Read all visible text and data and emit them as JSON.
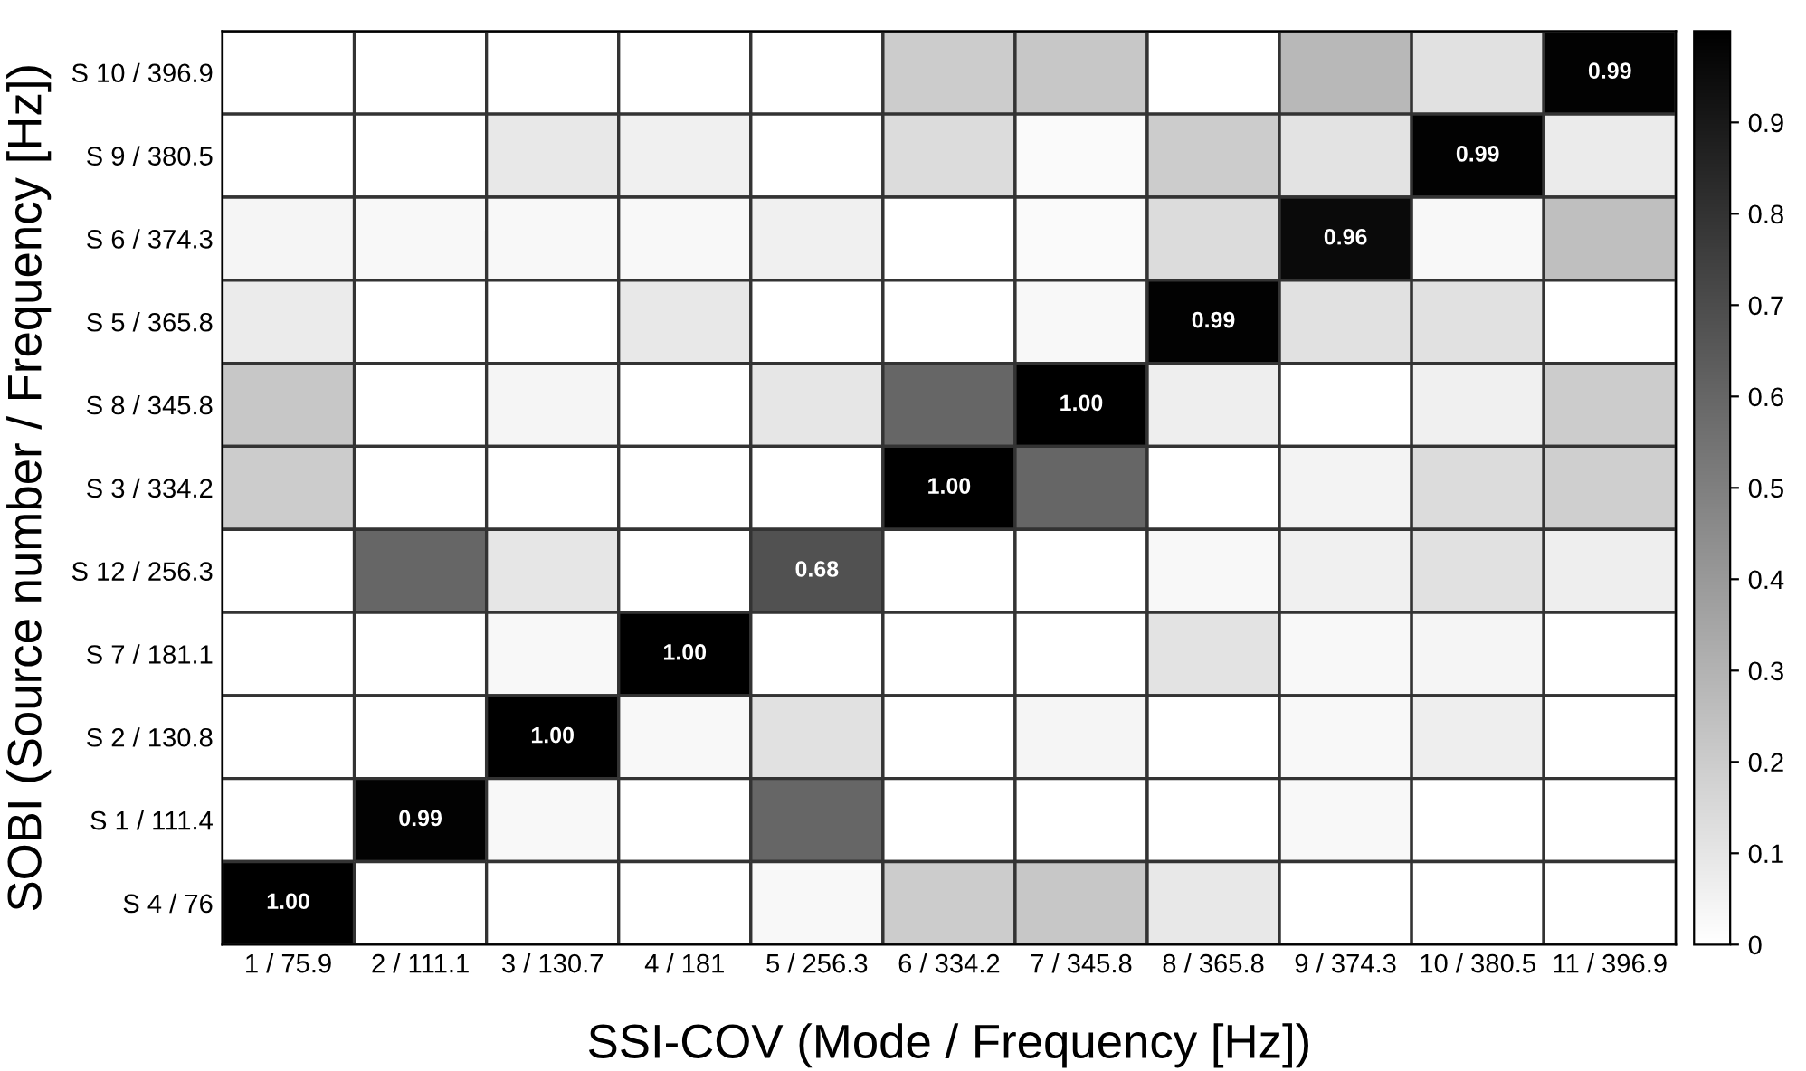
{
  "chart_data": {
    "type": "heatmap",
    "xlabel": "SSI-COV (Mode / Frequency [Hz])",
    "ylabel": "SOBI (Source number / Frequency [Hz])",
    "categories": [
      "1 / 75.9",
      "2 / 111.1",
      "3 / 130.7",
      "4 / 181",
      "5 / 256.3",
      "6 / 334.2",
      "7 / 345.8",
      "8 / 365.8",
      "9 / 374.3",
      "10 / 380.5",
      "11 / 396.9"
    ],
    "y_categories": [
      "S 10 / 396.9",
      "S 9 / 380.5",
      "S 6 / 374.3",
      "S 5 / 365.8",
      "S 8 / 345.8",
      "S 3 / 334.2",
      "S 12 / 256.3",
      "S 7 / 181.1",
      "S 2 / 130.8",
      "S 1 / 111.4",
      "S 4 / 76"
    ],
    "cells": [
      [
        0,
        0,
        0,
        0,
        0,
        0.2,
        0.22,
        0,
        0.28,
        0.12,
        0.99
      ],
      [
        0,
        0,
        0.09,
        0.06,
        0,
        0.14,
        0.02,
        0.2,
        0.11,
        0.99,
        0.08
      ],
      [
        0.04,
        0.03,
        0.03,
        0.03,
        0.06,
        0,
        0.02,
        0.14,
        0.96,
        0.03,
        0.25
      ],
      [
        0.08,
        0,
        0,
        0.09,
        0,
        0,
        0.03,
        0.99,
        0.12,
        0.12,
        0
      ],
      [
        0.22,
        0,
        0.04,
        0,
        0.1,
        0.6,
        1.0,
        0.07,
        0,
        0.06,
        0.2
      ],
      [
        0.2,
        0,
        0,
        0,
        0,
        1.0,
        0.6,
        0,
        0.05,
        0.14,
        0.19
      ],
      [
        0,
        0.6,
        0.1,
        0,
        0.68,
        0,
        0,
        0.03,
        0.06,
        0.12,
        0.07
      ],
      [
        0,
        0,
        0.03,
        1.0,
        0,
        0,
        0,
        0.11,
        0.03,
        0.04,
        0
      ],
      [
        0,
        0,
        1.0,
        0.03,
        0.12,
        0,
        0.04,
        0,
        0.03,
        0.07,
        0
      ],
      [
        0,
        0.99,
        0.03,
        0,
        0.6,
        0,
        0,
        0,
        0.03,
        0,
        0
      ],
      [
        1.0,
        0,
        0,
        0,
        0.03,
        0.2,
        0.22,
        0.09,
        0,
        0,
        0
      ]
    ],
    "cell_labels": [
      [
        null,
        null,
        null,
        null,
        null,
        null,
        null,
        null,
        null,
        null,
        "0.99"
      ],
      [
        null,
        null,
        null,
        null,
        null,
        null,
        null,
        null,
        null,
        "0.99",
        null
      ],
      [
        null,
        null,
        null,
        null,
        null,
        null,
        null,
        null,
        "0.96",
        null,
        null
      ],
      [
        null,
        null,
        null,
        null,
        null,
        null,
        null,
        "0.99",
        null,
        null,
        null
      ],
      [
        null,
        null,
        null,
        null,
        null,
        null,
        "1.00",
        null,
        null,
        null,
        null
      ],
      [
        null,
        null,
        null,
        null,
        null,
        "1.00",
        null,
        null,
        null,
        null,
        null
      ],
      [
        null,
        null,
        null,
        null,
        "0.68",
        null,
        null,
        null,
        null,
        null,
        null
      ],
      [
        null,
        null,
        null,
        "1.00",
        null,
        null,
        null,
        null,
        null,
        null,
        null
      ],
      [
        null,
        null,
        "1.00",
        null,
        null,
        null,
        null,
        null,
        null,
        null,
        null
      ],
      [
        null,
        "0.99",
        null,
        null,
        null,
        null,
        null,
        null,
        null,
        null,
        null
      ],
      [
        "1.00",
        null,
        null,
        null,
        null,
        null,
        null,
        null,
        null,
        null,
        null
      ]
    ],
    "clim": [
      0,
      1
    ],
    "cticks": [
      0,
      0.1,
      0.2,
      0.3,
      0.4,
      0.5,
      0.6,
      0.7,
      0.8,
      0.9
    ]
  }
}
